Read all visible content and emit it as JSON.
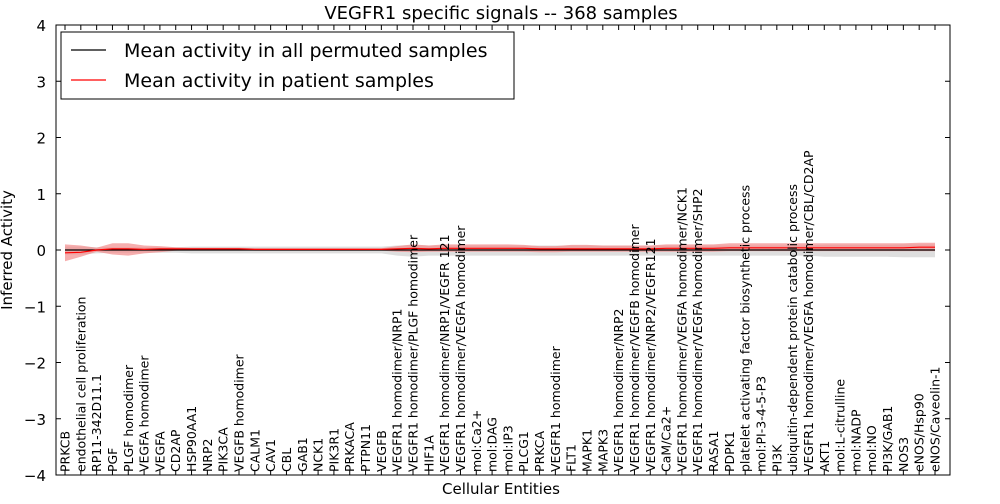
{
  "chart_data": {
    "type": "line",
    "title": "VEGFR1 specific signals -- 368 samples",
    "xlabel": "Cellular Entities",
    "ylabel": "Inferred Activity",
    "ylim": [
      -4,
      4
    ],
    "yticks": [
      "−4",
      "−3",
      "−2",
      "−1",
      "0",
      "1",
      "2",
      "3",
      "4"
    ],
    "grid": false,
    "legend_position": "top-left",
    "categories": [
      "PRKCB",
      "endothelial cell proliferation",
      "RP11-342D11.1",
      "PGF",
      "PLGF homodimer",
      "VEGFA homodimer",
      "VEGFA",
      "CD2AP",
      "HSP90AA1",
      "NRP2",
      "PIK3CA",
      "VEGFB homodimer",
      "CALM1",
      "CAV1",
      "CBL",
      "GAB1",
      "NCK1",
      "PIK3R1",
      "PRKACA",
      "PTPN11",
      "VEGFB",
      "VEGFR1 homodimer/NRP1",
      "VEGFR1 homodimer/PLGF homodimer",
      "HIF1A",
      "VEGFR1 homodimer/NRP1/VEGFR 121",
      "VEGFR1 homodimer/VEGFA homodimer",
      "mol:Ca2+",
      "mol:DAG",
      "mol:IP3",
      "PLCG1",
      "PRKCA",
      "VEGFR1 homodimer",
      "FLT1",
      "MAPK1",
      "MAPK3",
      "VEGFR1 homodimer/NRP2",
      "VEGFR1 homodimer/VEGFB homodimer",
      "VEGFR1 homodimer/NRP2/VEGFR121",
      "CaM/Ca2+",
      "VEGFR1 homodimer/VEGFA homodimer/NCK1",
      "VEGFR1 homodimer/VEGFA homodimer/SHP2",
      "RASA1",
      "PDPK1",
      "platelet activating factor biosynthetic process",
      "mol:PI-3-4-5-P3",
      "PI3K",
      "ubiquitin-dependent protein catabolic process",
      "VEGFR1 homodimer/VEGFA homodimer/CBL/CD2AP",
      "AKT1",
      "mol:L-citrulline",
      "mol:NADP",
      "mol:NO",
      "PI3K/GAB1",
      "NOS3",
      "eNOS/Hsp90",
      "eNOS/Caveolin-1"
    ],
    "series": [
      {
        "name": "Mean activity in all permuted samples",
        "color": "#000000",
        "values": [
          0,
          0,
          0,
          0,
          0,
          0,
          0,
          0,
          0,
          0,
          0,
          0,
          0,
          0,
          0,
          0,
          0,
          0,
          0,
          0,
          0,
          0,
          0,
          0,
          0,
          0,
          0,
          0,
          0,
          0,
          0,
          0,
          0,
          0,
          0,
          0,
          0,
          0,
          0,
          0,
          0,
          0,
          0,
          0,
          0,
          0,
          0,
          0,
          0,
          0,
          0,
          0,
          0,
          0,
          0,
          0
        ],
        "band_lower": [
          -0.08,
          -0.08,
          -0.06,
          -0.05,
          -0.05,
          -0.05,
          -0.05,
          -0.05,
          -0.06,
          -0.06,
          -0.06,
          -0.06,
          -0.06,
          -0.06,
          -0.06,
          -0.06,
          -0.06,
          -0.06,
          -0.06,
          -0.06,
          -0.06,
          -0.1,
          -0.12,
          -0.1,
          -0.1,
          -0.1,
          -0.1,
          -0.1,
          -0.1,
          -0.1,
          -0.1,
          -0.1,
          -0.1,
          -0.1,
          -0.1,
          -0.1,
          -0.1,
          -0.1,
          -0.1,
          -0.1,
          -0.1,
          -0.1,
          -0.1,
          -0.1,
          -0.1,
          -0.1,
          -0.1,
          -0.1,
          -0.12,
          -0.12,
          -0.12,
          -0.12,
          -0.12,
          -0.13,
          -0.13,
          -0.13
        ],
        "band_upper": [
          0.06,
          0.06,
          0.05,
          0.05,
          0.05,
          0.05,
          0.05,
          0.05,
          0.06,
          0.06,
          0.06,
          0.06,
          0.06,
          0.06,
          0.06,
          0.06,
          0.06,
          0.06,
          0.06,
          0.06,
          0.06,
          0.08,
          0.09,
          0.08,
          0.08,
          0.08,
          0.08,
          0.08,
          0.08,
          0.08,
          0.08,
          0.08,
          0.08,
          0.08,
          0.08,
          0.08,
          0.08,
          0.08,
          0.08,
          0.08,
          0.08,
          0.08,
          0.08,
          0.08,
          0.08,
          0.08,
          0.08,
          0.08,
          0.09,
          0.09,
          0.09,
          0.09,
          0.09,
          0.1,
          0.1,
          0.1
        ],
        "band_color": "#d8d8d8"
      },
      {
        "name": "Mean activity in patient samples",
        "color": "#ff0000",
        "values": [
          -0.05,
          -0.04,
          0.0,
          0.02,
          0.02,
          0.01,
          0.02,
          0.02,
          0.02,
          0.02,
          0.02,
          0.02,
          0.01,
          0.01,
          0.01,
          0.01,
          0.01,
          0.01,
          0.01,
          0.01,
          0.01,
          0.02,
          0.03,
          0.02,
          0.03,
          0.03,
          0.03,
          0.03,
          0.03,
          0.03,
          0.02,
          0.02,
          0.02,
          0.02,
          0.02,
          0.02,
          0.02,
          0.02,
          0.03,
          0.03,
          0.03,
          0.03,
          0.04,
          0.04,
          0.04,
          0.04,
          0.04,
          0.04,
          0.04,
          0.04,
          0.04,
          0.04,
          0.04,
          0.04,
          0.05,
          0.05
        ],
        "band_lower": [
          -0.2,
          -0.12,
          -0.03,
          -0.08,
          -0.1,
          -0.06,
          -0.04,
          -0.01,
          0.0,
          0.0,
          0.0,
          0.0,
          -0.01,
          -0.01,
          -0.01,
          -0.01,
          -0.01,
          -0.01,
          -0.01,
          -0.01,
          -0.01,
          -0.03,
          -0.04,
          -0.03,
          -0.03,
          -0.03,
          -0.03,
          -0.03,
          -0.03,
          -0.03,
          -0.04,
          -0.04,
          -0.03,
          -0.03,
          -0.03,
          -0.03,
          -0.03,
          -0.03,
          -0.03,
          -0.03,
          -0.03,
          -0.03,
          -0.02,
          -0.02,
          -0.02,
          -0.02,
          -0.02,
          -0.02,
          -0.02,
          -0.02,
          -0.02,
          -0.02,
          -0.02,
          -0.02,
          -0.02,
          -0.02
        ],
        "band_upper": [
          0.1,
          0.08,
          0.04,
          0.12,
          0.12,
          0.08,
          0.07,
          0.05,
          0.04,
          0.04,
          0.04,
          0.04,
          0.03,
          0.03,
          0.03,
          0.03,
          0.03,
          0.03,
          0.03,
          0.03,
          0.03,
          0.07,
          0.1,
          0.08,
          0.1,
          0.1,
          0.1,
          0.1,
          0.1,
          0.09,
          0.07,
          0.07,
          0.09,
          0.09,
          0.08,
          0.08,
          0.08,
          0.08,
          0.1,
          0.1,
          0.1,
          0.1,
          0.12,
          0.12,
          0.12,
          0.12,
          0.12,
          0.12,
          0.12,
          0.12,
          0.12,
          0.12,
          0.12,
          0.12,
          0.13,
          0.13
        ],
        "band_color": "#f28b8b"
      }
    ]
  }
}
